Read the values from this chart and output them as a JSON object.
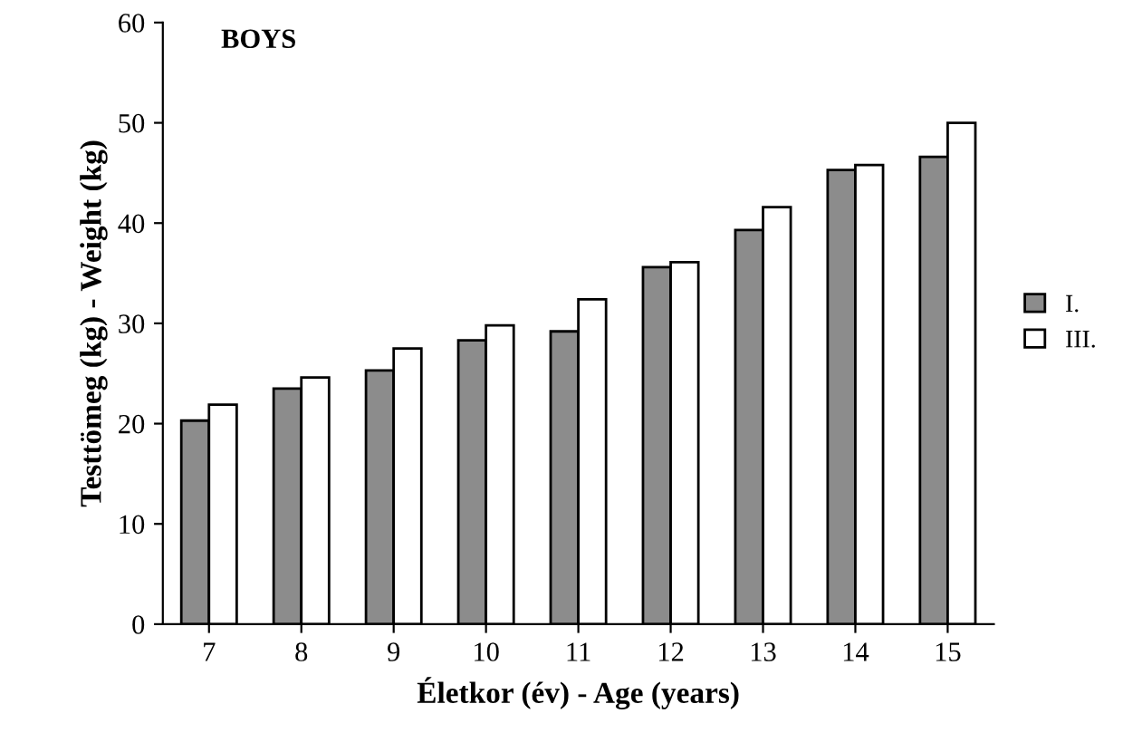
{
  "chart_data": {
    "type": "bar",
    "title": "BOYS",
    "xlabel": "Életkor (év) - Age (years)",
    "ylabel": "Testtömeg (kg) - Weight (kg)",
    "categories": [
      "7",
      "8",
      "9",
      "10",
      "11",
      "12",
      "13",
      "14",
      "15"
    ],
    "series": [
      {
        "name": "I.",
        "color": "#8c8c8c",
        "values": [
          20.3,
          23.5,
          25.3,
          28.3,
          29.2,
          35.6,
          39.3,
          45.3,
          46.6
        ]
      },
      {
        "name": "III.",
        "color": "#ffffff",
        "values": [
          21.9,
          24.6,
          27.5,
          29.8,
          32.4,
          36.1,
          41.6,
          45.8,
          50.0
        ]
      }
    ],
    "ylim": [
      0,
      60
    ],
    "yticks": [
      0,
      10,
      20,
      30,
      40,
      50,
      60
    ],
    "grid": false,
    "legend": "right"
  }
}
